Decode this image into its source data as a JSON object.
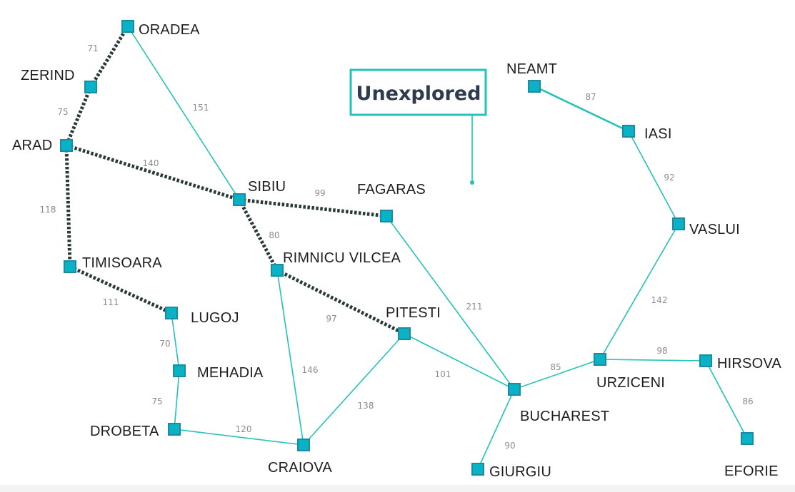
{
  "map": {
    "cities": [
      {
        "id": "oradea",
        "name": "ORADEA"
      },
      {
        "id": "zerind",
        "name": "ZERIND"
      },
      {
        "id": "arad",
        "name": "ARAD"
      },
      {
        "id": "timisoara",
        "name": "TIMISOARA"
      },
      {
        "id": "lugoj",
        "name": "LUGOJ"
      },
      {
        "id": "mehadia",
        "name": "MEHADIA"
      },
      {
        "id": "drobeta",
        "name": "DROBETA"
      },
      {
        "id": "sibiu",
        "name": "SIBIU"
      },
      {
        "id": "rimnicu",
        "name": "RIMNICU VILCEA"
      },
      {
        "id": "craiova",
        "name": "CRAIOVA"
      },
      {
        "id": "fagaras",
        "name": "FAGARAS"
      },
      {
        "id": "pitesti",
        "name": "PITESTI"
      },
      {
        "id": "bucharest",
        "name": "BUCHAREST"
      },
      {
        "id": "giurgiu",
        "name": "GIURGIU"
      },
      {
        "id": "urziceni",
        "name": "URZICENI"
      },
      {
        "id": "hirsova",
        "name": "HIRSOVA"
      },
      {
        "id": "eforie",
        "name": "EFORIE"
      },
      {
        "id": "vaslui",
        "name": "VASLUI"
      },
      {
        "id": "iasi",
        "name": "IASI"
      },
      {
        "id": "neamt",
        "name": "NEAMT"
      }
    ],
    "roads": [
      {
        "from": "oradea",
        "to": "zerind",
        "distance": "71",
        "explored": true
      },
      {
        "from": "zerind",
        "to": "arad",
        "distance": "75",
        "explored": true
      },
      {
        "from": "oradea",
        "to": "sibiu",
        "distance": "151",
        "explored": false
      },
      {
        "from": "arad",
        "to": "sibiu",
        "distance": "140",
        "explored": true
      },
      {
        "from": "arad",
        "to": "timisoara",
        "distance": "118",
        "explored": true
      },
      {
        "from": "timisoara",
        "to": "lugoj",
        "distance": "111",
        "explored": true
      },
      {
        "from": "lugoj",
        "to": "mehadia",
        "distance": "70",
        "explored": false
      },
      {
        "from": "mehadia",
        "to": "drobeta",
        "distance": "75",
        "explored": false
      },
      {
        "from": "drobeta",
        "to": "craiova",
        "distance": "120",
        "explored": false
      },
      {
        "from": "sibiu",
        "to": "fagaras",
        "distance": "99",
        "explored": true
      },
      {
        "from": "sibiu",
        "to": "rimnicu",
        "distance": "80",
        "explored": true
      },
      {
        "from": "rimnicu",
        "to": "pitesti",
        "distance": "97",
        "explored": true
      },
      {
        "from": "rimnicu",
        "to": "craiova",
        "distance": "146",
        "explored": false
      },
      {
        "from": "craiova",
        "to": "pitesti",
        "distance": "138",
        "explored": false
      },
      {
        "from": "fagaras",
        "to": "bucharest",
        "distance": "211",
        "explored": false
      },
      {
        "from": "pitesti",
        "to": "bucharest",
        "distance": "101",
        "explored": false
      },
      {
        "from": "bucharest",
        "to": "giurgiu",
        "distance": "90",
        "explored": false
      },
      {
        "from": "bucharest",
        "to": "urziceni",
        "distance": "85",
        "explored": false
      },
      {
        "from": "urziceni",
        "to": "hirsova",
        "distance": "98",
        "explored": false
      },
      {
        "from": "hirsova",
        "to": "eforie",
        "distance": "86",
        "explored": false
      },
      {
        "from": "urziceni",
        "to": "vaslui",
        "distance": "142",
        "explored": false
      },
      {
        "from": "vaslui",
        "to": "iasi",
        "distance": "92",
        "explored": false
      },
      {
        "from": "iasi",
        "to": "neamt",
        "distance": "87",
        "explored": false
      }
    ]
  },
  "legend": {
    "label": "Unexplored"
  },
  "colors": {
    "edge": "#25c2b5",
    "explored": "#2a3a3a",
    "node": "#0ab2c6",
    "text": "#1f1f1f"
  }
}
